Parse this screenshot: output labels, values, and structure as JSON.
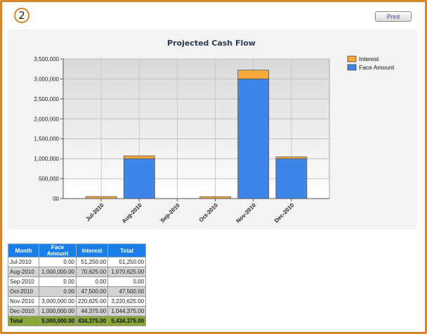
{
  "page": {
    "step_number": "2",
    "print_label": "Print"
  },
  "chart_data": {
    "type": "bar",
    "stacked": true,
    "title": "Projected Cash Flow",
    "xlabel": "",
    "ylabel": "",
    "categories": [
      "Jul-2010",
      "Aug-2010",
      "Sep-2010",
      "Oct-2010",
      "Nov-2010",
      "Dec-2010"
    ],
    "series": [
      {
        "name": "Face Amount",
        "values": [
          0,
          1000000,
          0,
          0,
          3000000,
          1000000
        ],
        "color": "#3d86e8"
      },
      {
        "name": "Interest",
        "values": [
          51250,
          70625,
          0,
          47500,
          220625,
          44375
        ],
        "color": "#f7a93a"
      }
    ],
    "legend_order": [
      "Interest",
      "Face Amount"
    ],
    "legend_position": "top-right",
    "ylim": [
      0,
      3500000
    ],
    "yticks": [
      0,
      500000,
      1000000,
      1500000,
      2000000,
      2500000,
      3000000,
      3500000
    ],
    "ytick_labels": [
      "00",
      "500,000",
      "1,000,000",
      "1,500,000",
      "2,000,000",
      "2,500,000",
      "3,000,000",
      "3,500,000"
    ],
    "grid": true
  },
  "table": {
    "headers": [
      "Month",
      "Face Amount",
      "Interest",
      "Total"
    ],
    "rows": [
      [
        "Jul-2010",
        "0.00",
        "51,250.00",
        "51,250.00"
      ],
      [
        "Aug-2010",
        "1,000,000.00",
        "70,625.00",
        "1,070,625.00"
      ],
      [
        "Sep-2010",
        "0.00",
        "0.00",
        "0.00"
      ],
      [
        "Oct-2010",
        "0.00",
        "47,500.00",
        "47,500.00"
      ],
      [
        "Nov-2010",
        "3,000,000.00",
        "220,625.00",
        "3,220,625.00"
      ],
      [
        "Dec-2010",
        "1,000,000.00",
        "44,375.00",
        "1,044,375.00"
      ]
    ],
    "total": [
      "Total",
      "5,000,000.00",
      "434,375.00",
      "5,434,375.00"
    ]
  }
}
